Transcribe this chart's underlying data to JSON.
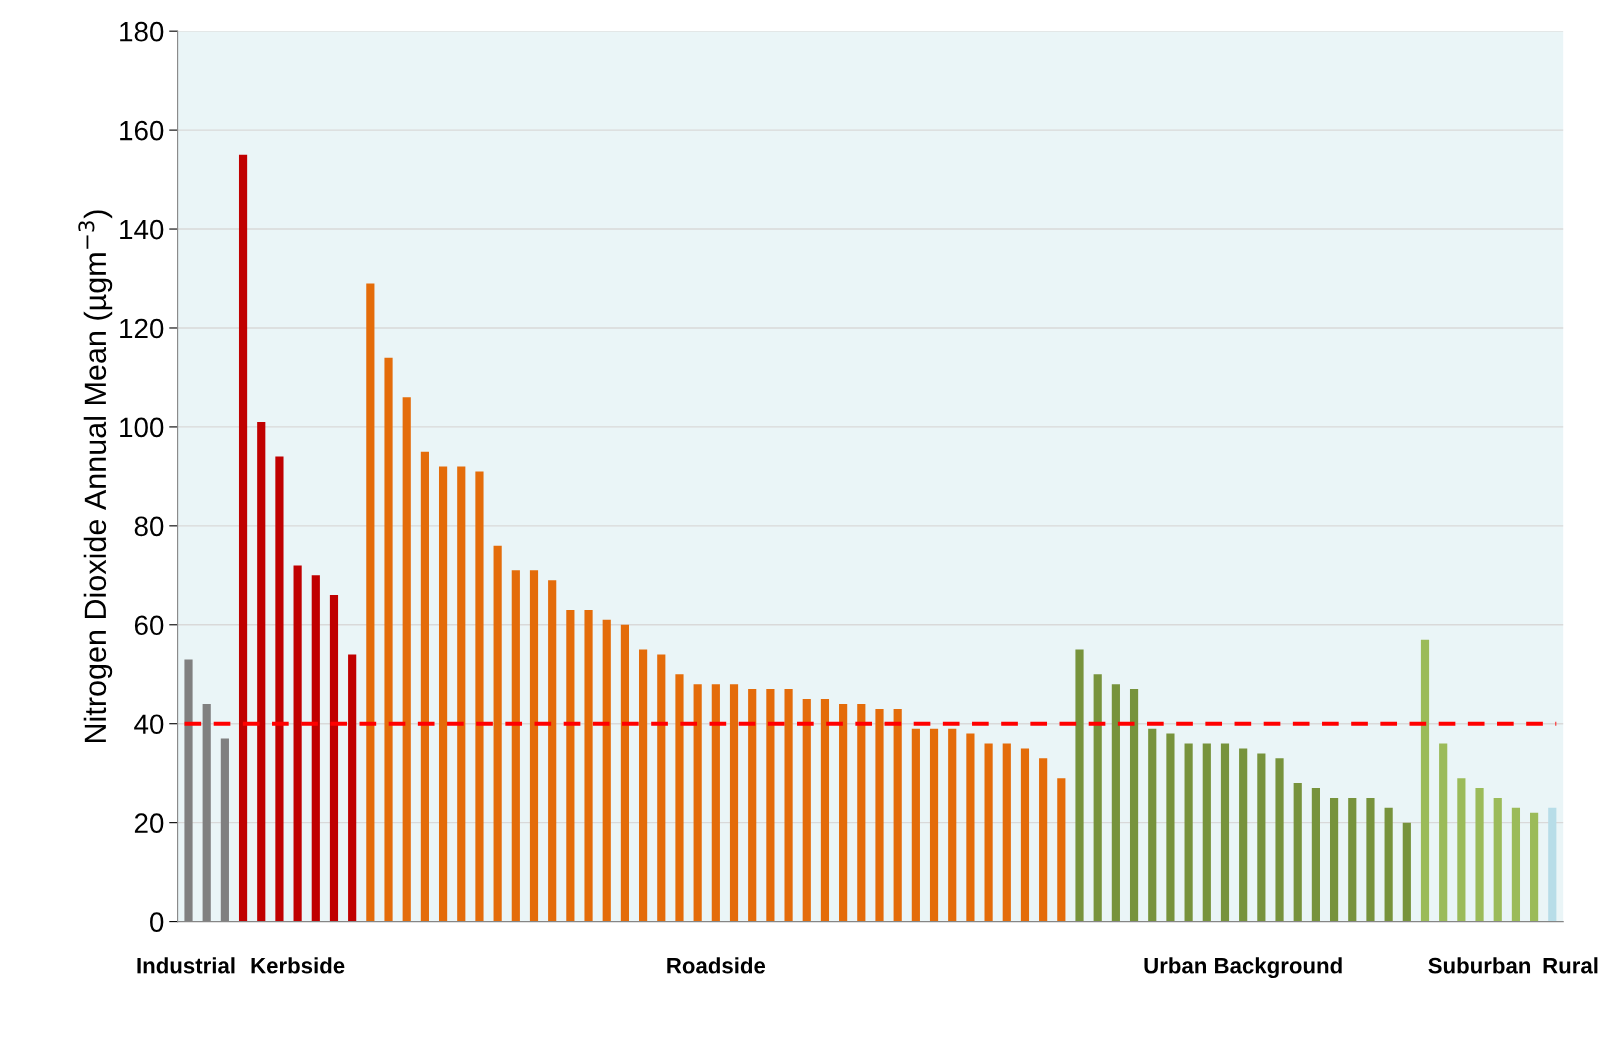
{
  "chart_data": {
    "type": "bar",
    "ylabel": "Nitrogen Dioxide Annual Mean (µgm$^{−3}$)",
    "categories": [
      null,
      null,
      null,
      null,
      null,
      null,
      null,
      null,
      null,
      null,
      null,
      null,
      null,
      null,
      null,
      null,
      null,
      null,
      null,
      null,
      null,
      null,
      null,
      null,
      null,
      null,
      null,
      null,
      null,
      null,
      null,
      null,
      null,
      null,
      null,
      null,
      null,
      null,
      null,
      null,
      null,
      null,
      null,
      null,
      null,
      null,
      null,
      null,
      null,
      null,
      null,
      null,
      null,
      null,
      null,
      null,
      null,
      null,
      null,
      null,
      null,
      null,
      null,
      null,
      null,
      null,
      null,
      null,
      null,
      null,
      null,
      null,
      null,
      null,
      null,
      null
    ],
    "series": [
      {
        "name": "Industrial",
        "color": "#808080",
        "values": [
          53,
          44,
          37,
          null,
          null,
          null,
          null,
          null,
          null,
          null,
          null,
          null,
          null,
          null,
          null,
          null,
          null,
          null,
          null,
          null,
          null,
          null,
          null,
          null,
          null,
          null,
          null,
          null,
          null,
          null,
          null,
          null,
          null,
          null,
          null,
          null,
          null,
          null,
          null,
          null,
          null,
          null,
          null,
          null,
          null,
          null,
          null,
          null,
          null,
          null,
          null,
          null,
          null,
          null,
          null,
          null,
          null,
          null,
          null,
          null,
          null,
          null,
          null,
          null,
          null,
          null,
          null,
          null,
          null,
          null,
          null,
          null,
          null,
          null,
          null,
          null
        ]
      },
      {
        "name": "Kerbside",
        "color": "#c00000",
        "values": [
          null,
          null,
          null,
          155,
          101,
          94,
          72,
          70,
          66,
          54,
          null,
          null,
          null,
          null,
          null,
          null,
          null,
          null,
          null,
          null,
          null,
          null,
          null,
          null,
          null,
          null,
          null,
          null,
          null,
          null,
          null,
          null,
          null,
          null,
          null,
          null,
          null,
          null,
          null,
          null,
          null,
          null,
          null,
          null,
          null,
          null,
          null,
          null,
          null,
          null,
          null,
          null,
          null,
          null,
          null,
          null,
          null,
          null,
          null,
          null,
          null,
          null,
          null,
          null,
          null,
          null,
          null,
          null,
          null,
          null,
          null,
          null,
          null,
          null,
          null,
          null
        ]
      },
      {
        "name": "Roadside",
        "color": "#e46c0a",
        "values": [
          null,
          null,
          null,
          null,
          null,
          null,
          null,
          null,
          null,
          null,
          129,
          114,
          106,
          95,
          92,
          92,
          91,
          76,
          71,
          71,
          69,
          63,
          63,
          61,
          60,
          55,
          54,
          50,
          48,
          48,
          48,
          47,
          47,
          47,
          45,
          45,
          44,
          44,
          43,
          43,
          39,
          39,
          39,
          38,
          36,
          36,
          35,
          33,
          29,
          null,
          null,
          null,
          null,
          null,
          null,
          null,
          null,
          null,
          null,
          null,
          null,
          null,
          null,
          null,
          null,
          null,
          null,
          null,
          null,
          null,
          null,
          null,
          null,
          null,
          null,
          null
        ]
      },
      {
        "name": "Urban Background",
        "color": "#77933c",
        "values": [
          null,
          null,
          null,
          null,
          null,
          null,
          null,
          null,
          null,
          null,
          null,
          null,
          null,
          null,
          null,
          null,
          null,
          null,
          null,
          null,
          null,
          null,
          null,
          null,
          null,
          null,
          null,
          null,
          null,
          null,
          null,
          null,
          null,
          null,
          null,
          null,
          null,
          null,
          null,
          null,
          null,
          null,
          null,
          null,
          null,
          null,
          null,
          null,
          null,
          55,
          50,
          48,
          47,
          39,
          38,
          36,
          36,
          36,
          35,
          34,
          33,
          28,
          27,
          25,
          25,
          25,
          23,
          20,
          null,
          null,
          null,
          null,
          null,
          null,
          null,
          null
        ]
      },
      {
        "name": "Suburban",
        "color": "#9bbb59",
        "values": [
          null,
          null,
          null,
          null,
          null,
          null,
          null,
          null,
          null,
          null,
          null,
          null,
          null,
          null,
          null,
          null,
          null,
          null,
          null,
          null,
          null,
          null,
          null,
          null,
          null,
          null,
          null,
          null,
          null,
          null,
          null,
          null,
          null,
          null,
          null,
          null,
          null,
          null,
          null,
          null,
          null,
          null,
          null,
          null,
          null,
          null,
          null,
          null,
          null,
          null,
          null,
          null,
          null,
          null,
          null,
          null,
          null,
          null,
          null,
          null,
          null,
          null,
          null,
          null,
          null,
          null,
          null,
          null,
          57,
          36,
          29,
          27,
          25,
          23,
          22,
          null
        ]
      },
      {
        "name": "Rural",
        "color": "#b7dde8",
        "values": [
          null,
          null,
          null,
          null,
          null,
          null,
          null,
          null,
          null,
          null,
          null,
          null,
          null,
          null,
          null,
          null,
          null,
          null,
          null,
          null,
          null,
          null,
          null,
          null,
          null,
          null,
          null,
          null,
          null,
          null,
          null,
          null,
          null,
          null,
          null,
          null,
          null,
          null,
          null,
          null,
          null,
          null,
          null,
          null,
          null,
          null,
          null,
          null,
          null,
          null,
          null,
          null,
          null,
          null,
          null,
          null,
          null,
          null,
          null,
          null,
          null,
          null,
          null,
          null,
          null,
          null,
          null,
          null,
          null,
          null,
          null,
          null,
          null,
          null,
          null,
          23
        ]
      }
    ],
    "ylim": [
      0,
      180
    ],
    "yticks": [
      0,
      20,
      40,
      60,
      80,
      100,
      120,
      140,
      160,
      180
    ],
    "grid": "y",
    "ref_lines": [
      {
        "axis": "y",
        "value": 40,
        "color": "#ff0000",
        "line_style": "dashed"
      }
    ]
  }
}
